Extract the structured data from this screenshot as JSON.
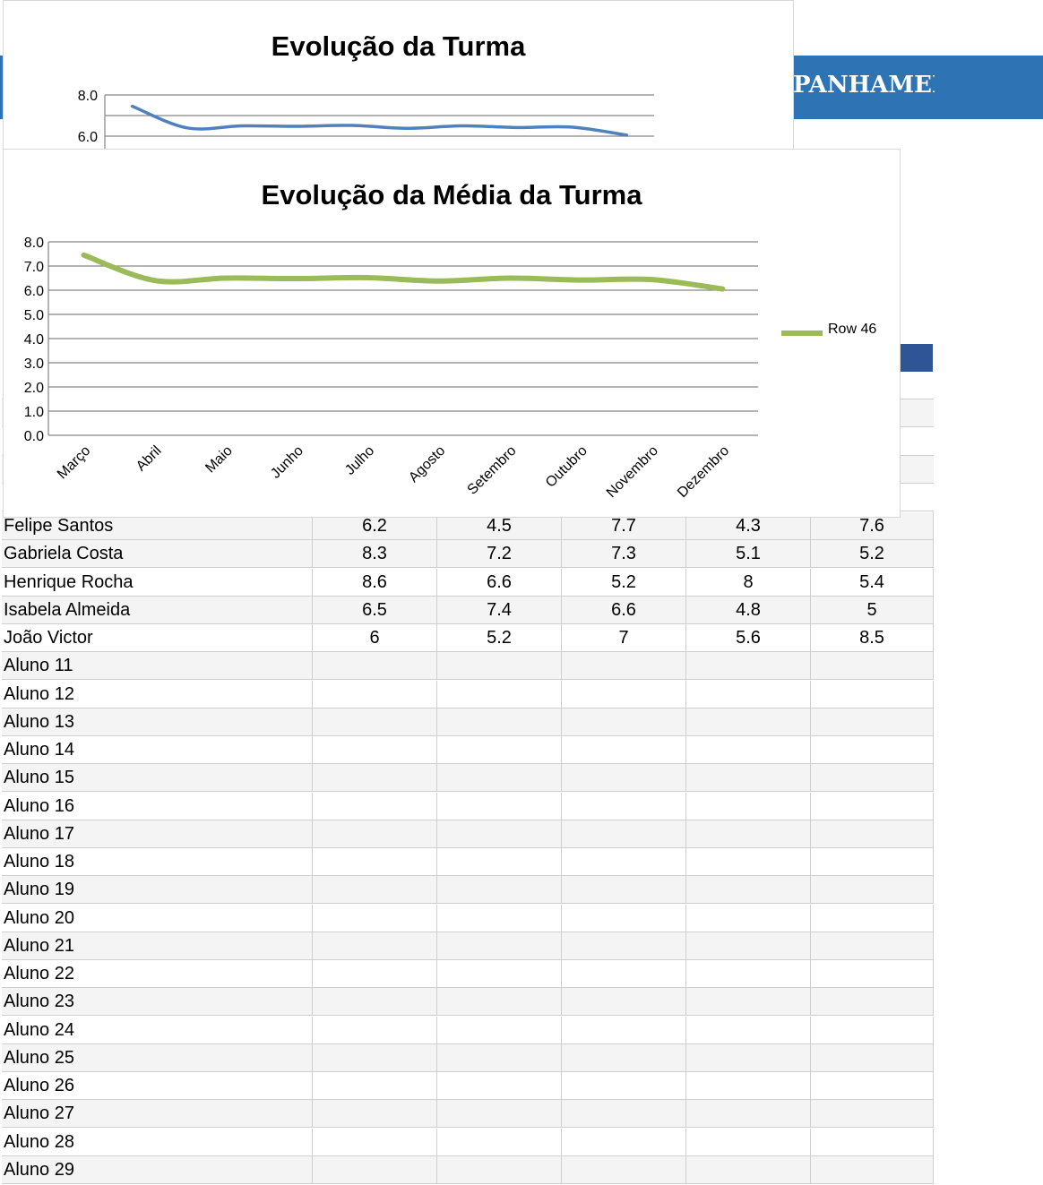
{
  "banner": {
    "text": "PANHAMEN"
  },
  "charts": {
    "back": {
      "title": "Evolução da Turma",
      "ticks": [
        "8.0",
        "6.0"
      ]
    },
    "front": {
      "title": "Evolução da Média da Turma",
      "legend": "Row 46",
      "series_color": "#9bbb59"
    }
  },
  "chart_data": [
    {
      "type": "line",
      "title": "Evolução da Turma",
      "categories": [
        "Março",
        "Abril",
        "Maio",
        "Junho",
        "Julho",
        "Agosto",
        "Setembro",
        "Outubro",
        "Novembro",
        "Dezembro"
      ],
      "series": [
        {
          "values": [
            7.45,
            6.4,
            6.5,
            6.48,
            6.52,
            6.38,
            6.5,
            6.42,
            6.44,
            6.05
          ]
        }
      ],
      "ylim": [
        6.0,
        8.0
      ],
      "color": "#4f81bd"
    },
    {
      "type": "line",
      "title": "Evolução da Média da Turma",
      "categories": [
        "Março",
        "Abril",
        "Maio",
        "Junho",
        "Julho",
        "Agosto",
        "Setembro",
        "Outubro",
        "Novembro",
        "Dezembro"
      ],
      "series": [
        {
          "name": "Row 46",
          "values": [
            7.45,
            6.4,
            6.5,
            6.48,
            6.52,
            6.38,
            6.5,
            6.42,
            6.44,
            6.05
          ]
        }
      ],
      "yticks": [
        "0.0",
        "1.0",
        "2.0",
        "3.0",
        "4.0",
        "5.0",
        "6.0",
        "7.0",
        "8.0"
      ],
      "ylim": [
        0,
        8
      ],
      "grid": true,
      "legend": "right"
    }
  ],
  "table": {
    "rows": [
      {
        "name": "Felipe Santos",
        "g": [
          "6.2",
          "4.5",
          "7.7",
          "4.3",
          "7.6"
        ]
      },
      {
        "name": "Gabriela Costa",
        "g": [
          "8.3",
          "7.2",
          "7.3",
          "5.1",
          "5.2"
        ]
      },
      {
        "name": "Henrique Rocha",
        "g": [
          "8.6",
          "6.6",
          "5.2",
          "8",
          "5.4"
        ]
      },
      {
        "name": "Isabela Almeida",
        "g": [
          "6.5",
          "7.4",
          "6.6",
          "4.8",
          "5"
        ]
      },
      {
        "name": "João Victor",
        "g": [
          "6",
          "5.2",
          "7",
          "5.6",
          "8.5"
        ]
      },
      {
        "name": "Aluno 11",
        "g": [
          "",
          "",
          "",
          "",
          ""
        ]
      },
      {
        "name": "Aluno 12",
        "g": [
          "",
          "",
          "",
          "",
          ""
        ]
      },
      {
        "name": "Aluno 13",
        "g": [
          "",
          "",
          "",
          "",
          ""
        ]
      },
      {
        "name": "Aluno 14",
        "g": [
          "",
          "",
          "",
          "",
          ""
        ]
      },
      {
        "name": "Aluno 15",
        "g": [
          "",
          "",
          "",
          "",
          ""
        ]
      },
      {
        "name": "Aluno 16",
        "g": [
          "",
          "",
          "",
          "",
          ""
        ]
      },
      {
        "name": "Aluno 17",
        "g": [
          "",
          "",
          "",
          "",
          ""
        ]
      },
      {
        "name": "Aluno 18",
        "g": [
          "",
          "",
          "",
          "",
          ""
        ]
      },
      {
        "name": "Aluno 19",
        "g": [
          "",
          "",
          "",
          "",
          ""
        ]
      },
      {
        "name": "Aluno 20",
        "g": [
          "",
          "",
          "",
          "",
          ""
        ]
      },
      {
        "name": "Aluno 21",
        "g": [
          "",
          "",
          "",
          "",
          ""
        ]
      },
      {
        "name": "Aluno 22",
        "g": [
          "",
          "",
          "",
          "",
          ""
        ]
      },
      {
        "name": "Aluno 23",
        "g": [
          "",
          "",
          "",
          "",
          ""
        ]
      },
      {
        "name": "Aluno 24",
        "g": [
          "",
          "",
          "",
          "",
          ""
        ]
      },
      {
        "name": "Aluno 25",
        "g": [
          "",
          "",
          "",
          "",
          ""
        ]
      },
      {
        "name": "Aluno 26",
        "g": [
          "",
          "",
          "",
          "",
          ""
        ]
      },
      {
        "name": "Aluno 27",
        "g": [
          "",
          "",
          "",
          "",
          ""
        ]
      },
      {
        "name": "Aluno 28",
        "g": [
          "",
          "",
          "",
          "",
          ""
        ]
      },
      {
        "name": "Aluno 29",
        "g": [
          "",
          "",
          "",
          "",
          ""
        ]
      }
    ]
  }
}
